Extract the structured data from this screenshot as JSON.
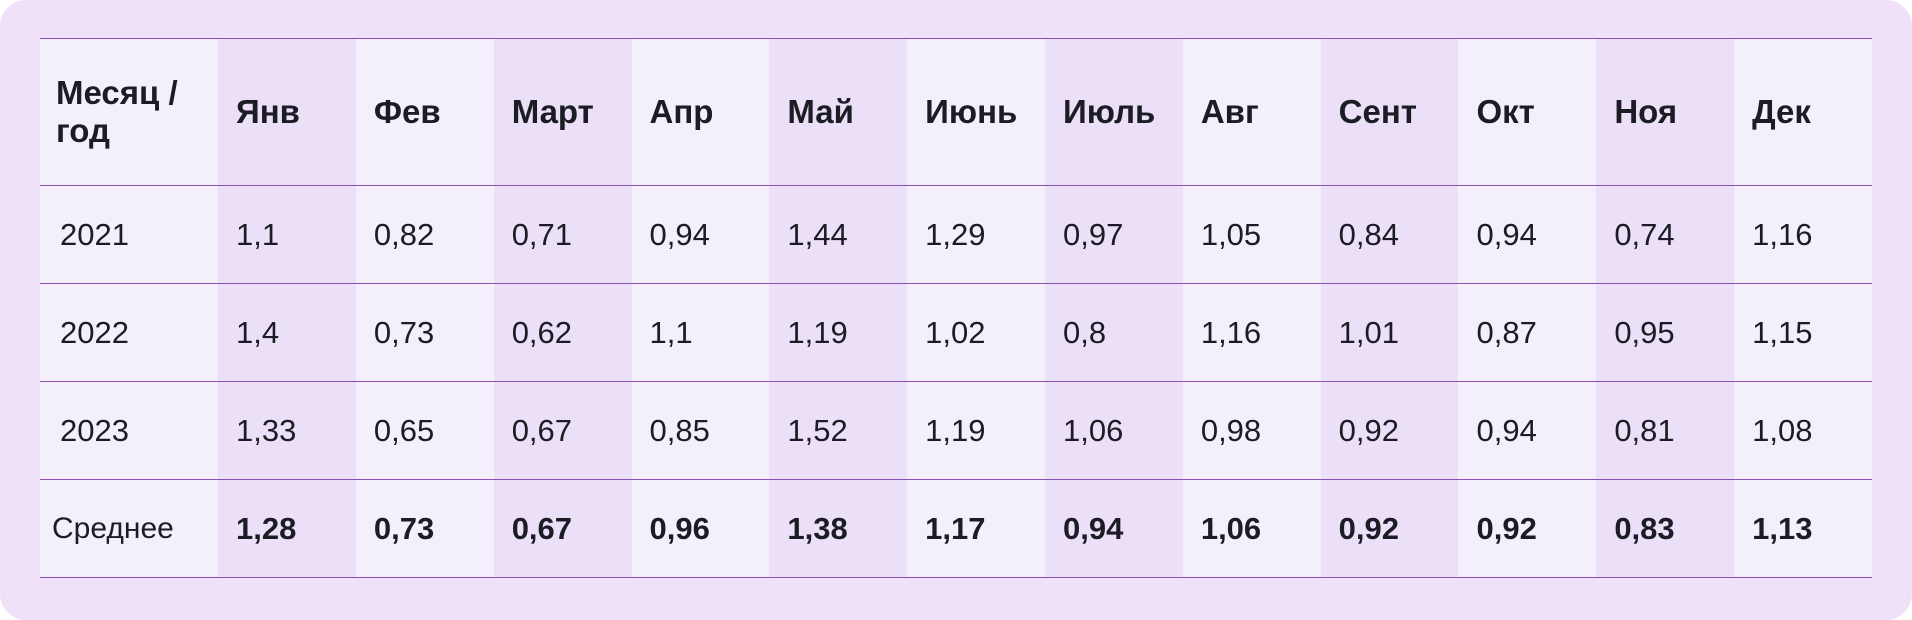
{
  "table": {
    "header_first": "Месяц / год",
    "months": [
      "Янв",
      "Фев",
      "Март",
      "Апр",
      "Май",
      "Июнь",
      "Июль",
      "Авг",
      "Сент",
      "Окт",
      "Ноя",
      "Дек"
    ],
    "rows": [
      {
        "label": "2021",
        "values": [
          "1,1",
          "0,82",
          "0,71",
          "0,94",
          "1,44",
          "1,29",
          "0,97",
          "1,05",
          "0,84",
          "0,94",
          "0,74",
          "1,16"
        ]
      },
      {
        "label": "2022",
        "values": [
          "1,4",
          "0,73",
          "0,62",
          "1,1",
          "1,19",
          "1,02",
          "0,8",
          "1,16",
          "1,01",
          "0,87",
          "0,95",
          "1,15"
        ]
      },
      {
        "label": "2023",
        "values": [
          "1,33",
          "0,65",
          "0,67",
          "0,85",
          "1,52",
          "1,19",
          "1,06",
          "0,98",
          "0,92",
          "0,94",
          "0,81",
          "1,08"
        ]
      },
      {
        "label": "Среднее",
        "values": [
          "1,28",
          "0,73",
          "0,67",
          "0,96",
          "1,38",
          "1,17",
          "0,94",
          "1,06",
          "0,92",
          "0,92",
          "0,83",
          "1,13"
        ]
      }
    ]
  },
  "colors": {
    "frame_background": "#efe1f8",
    "column_tint": "#ece0f8",
    "column_light": "#f4f0fb",
    "rule_line": "#8c4fb4",
    "text": "#1c1c24"
  }
}
